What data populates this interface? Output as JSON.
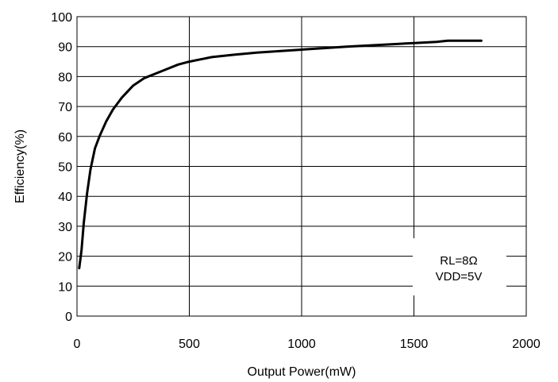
{
  "chart_data": {
    "type": "line",
    "xlabel": "Output Power(mW)",
    "ylabel": "Efficiency(%)",
    "xlim": [
      0,
      2000
    ],
    "ylim": [
      0,
      100
    ],
    "x_ticks": [
      0,
      500,
      1000,
      1500,
      2000
    ],
    "y_ticks": [
      0,
      10,
      20,
      30,
      40,
      50,
      60,
      70,
      80,
      90,
      100
    ],
    "grid": true,
    "annotations": [
      "RL=8Ω",
      "VDD=5V"
    ],
    "series": [
      {
        "x": [
          10,
          20,
          30,
          45,
          60,
          80,
          100,
          130,
          160,
          200,
          250,
          300,
          350,
          400,
          450,
          500,
          600,
          700,
          800,
          900,
          1000,
          1100,
          1200,
          1300,
          1400,
          1500,
          1600,
          1650,
          1700,
          1800
        ],
        "y": [
          16,
          22,
          31,
          41,
          49,
          56,
          60,
          65,
          69,
          73,
          77,
          79.5,
          81,
          82.5,
          84,
          85,
          86.5,
          87.3,
          88,
          88.5,
          89,
          89.5,
          90,
          90.4,
          90.8,
          91.2,
          91.6,
          92,
          92,
          92
        ]
      }
    ]
  }
}
